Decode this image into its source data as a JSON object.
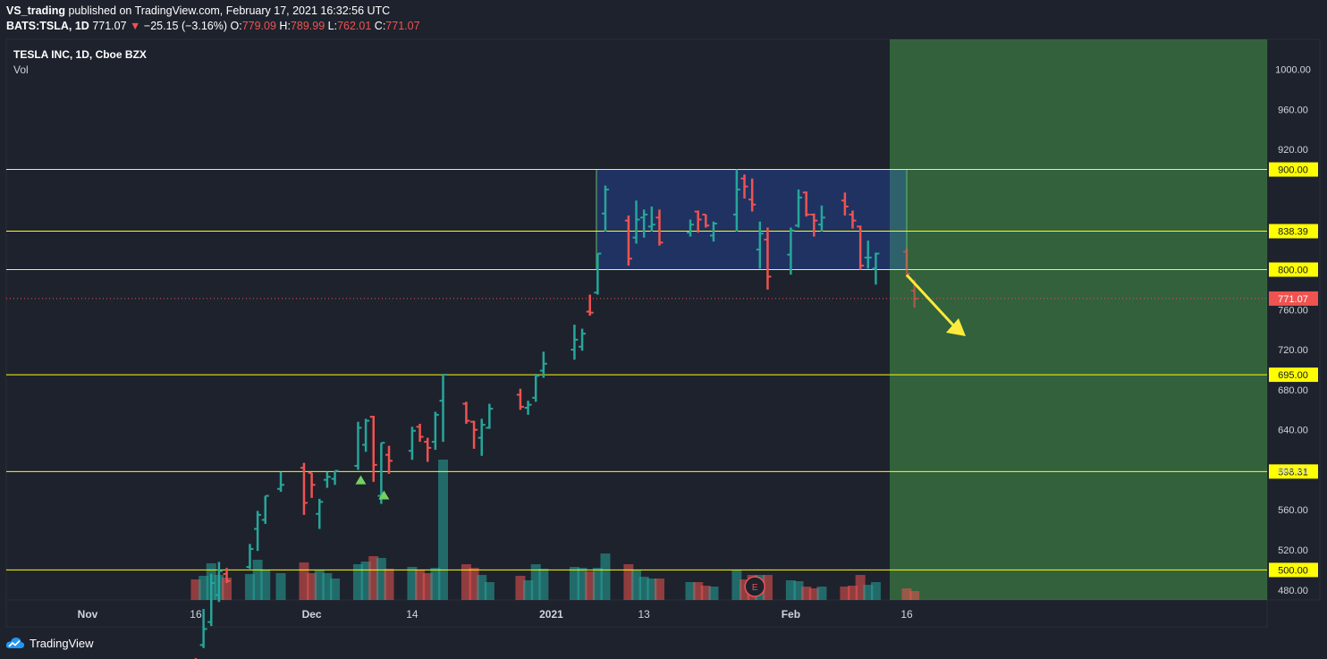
{
  "header": {
    "author": "VS_trading",
    "published_text": "published on TradingView.com, February 17, 2021 16:32:56 UTC",
    "symbol": "BATS:TSLA, 1D",
    "last": "771.07",
    "change": "−25.15 (−3.16%)",
    "o_label": "O:",
    "o_value": "779.09",
    "h_label": "H:",
    "h_value": "789.99",
    "l_label": "L:",
    "l_value": "762.01",
    "c_label": "C:",
    "c_value": "771.07"
  },
  "footer": {
    "brand": "TradingView"
  },
  "colors": {
    "bg": "#1e222d",
    "up": "#26a69a",
    "down": "#ef5350",
    "level_line": "#ffff00",
    "zone_fill": "#4caf50",
    "arrow": "#ffeb3b"
  },
  "chart_data": {
    "type": "ohlc",
    "title": "TESLA INC, 1D, Cboe BZX",
    "volume_label": "Vol",
    "price_range": [
      470,
      1030
    ],
    "y_ticks": [
      480,
      520,
      560,
      600,
      640,
      680,
      720,
      760,
      920,
      960,
      1000
    ],
    "x_ticks": [
      "Nov",
      "16",
      "Dec",
      "14",
      "2021",
      "13",
      "Feb",
      "16"
    ],
    "levels": [
      500.0,
      598.31,
      695.0,
      800.0,
      838.39,
      900.0
    ],
    "level_labels": [
      "500.00",
      "598.31",
      "695.00",
      "800.00",
      "838.39",
      "900.00"
    ],
    "last_price": 771.07,
    "last_price_label": "771.07",
    "consolidation_box": {
      "from_date": "2021-01-08",
      "to_date": "2021-02-16",
      "low": 800,
      "high": 900
    },
    "forecast_zone_from": "2021-02-16",
    "earnings_marker": "E",
    "signal_markers": [
      "buy",
      "buy"
    ],
    "bars": [
      {
        "d": "2020-11-16",
        "o": 409,
        "h": 412,
        "l": 402,
        "c": 408
      },
      {
        "d": "2020-11-17",
        "o": 425,
        "h": 461,
        "l": 422,
        "c": 441
      },
      {
        "d": "2020-11-18",
        "o": 448,
        "h": 496,
        "l": 444,
        "c": 487
      },
      {
        "d": "2020-11-19",
        "o": 475,
        "h": 508,
        "l": 468,
        "c": 499
      },
      {
        "d": "2020-11-20",
        "o": 496,
        "h": 502,
        "l": 487,
        "c": 489
      },
      {
        "d": "2020-11-23",
        "o": 503,
        "h": 526,
        "l": 501,
        "c": 521
      },
      {
        "d": "2020-11-24",
        "o": 541,
        "h": 559,
        "l": 519,
        "c": 555
      },
      {
        "d": "2020-11-25",
        "o": 550,
        "h": 574,
        "l": 546,
        "c": 574
      },
      {
        "d": "2020-11-27",
        "o": 581,
        "h": 598,
        "l": 578,
        "c": 585
      },
      {
        "d": "2020-11-30",
        "o": 602,
        "h": 607,
        "l": 555,
        "c": 567
      },
      {
        "d": "2020-12-01",
        "o": 597,
        "h": 597,
        "l": 572,
        "c": 585
      },
      {
        "d": "2020-12-02",
        "o": 556,
        "h": 571,
        "l": 541,
        "c": 568
      },
      {
        "d": "2020-12-03",
        "o": 590,
        "h": 598,
        "l": 582,
        "c": 593
      },
      {
        "d": "2020-12-04",
        "o": 591,
        "h": 599,
        "l": 585,
        "c": 599
      },
      {
        "d": "2020-12-07",
        "o": 604,
        "h": 648,
        "l": 600,
        "c": 642
      },
      {
        "d": "2020-12-08",
        "o": 625,
        "h": 651,
        "l": 618,
        "c": 649
      },
      {
        "d": "2020-12-09",
        "o": 653,
        "h": 654,
        "l": 588,
        "c": 605
      },
      {
        "d": "2020-12-10",
        "o": 574,
        "h": 627,
        "l": 566,
        "c": 627
      },
      {
        "d": "2020-12-11",
        "o": 615,
        "h": 624,
        "l": 596,
        "c": 609
      },
      {
        "d": "2020-12-14",
        "o": 619,
        "h": 643,
        "l": 610,
        "c": 639
      },
      {
        "d": "2020-12-15",
        "o": 643,
        "h": 646,
        "l": 628,
        "c": 633
      },
      {
        "d": "2020-12-16",
        "o": 628,
        "h": 632,
        "l": 608,
        "c": 622
      },
      {
        "d": "2020-12-17",
        "o": 628,
        "h": 658,
        "l": 620,
        "c": 655
      },
      {
        "d": "2020-12-18",
        "o": 669,
        "h": 695,
        "l": 628,
        "c": 695
      },
      {
        "d": "2020-12-21",
        "o": 666,
        "h": 668,
        "l": 646,
        "c": 649
      },
      {
        "d": "2020-12-22",
        "o": 648,
        "h": 649,
        "l": 621,
        "c": 640
      },
      {
        "d": "2020-12-23",
        "o": 632,
        "h": 651,
        "l": 614,
        "c": 645
      },
      {
        "d": "2020-12-24",
        "o": 642,
        "h": 666,
        "l": 641,
        "c": 661
      },
      {
        "d": "2020-12-28",
        "o": 675,
        "h": 681,
        "l": 660,
        "c": 663
      },
      {
        "d": "2020-12-29",
        "o": 662,
        "h": 669,
        "l": 655,
        "c": 665
      },
      {
        "d": "2020-12-30",
        "o": 672,
        "h": 696,
        "l": 668,
        "c": 694
      },
      {
        "d": "2020-12-31",
        "o": 699,
        "h": 718,
        "l": 692,
        "c": 706
      },
      {
        "d": "2021-01-04",
        "o": 720,
        "h": 745,
        "l": 710,
        "c": 730
      },
      {
        "d": "2021-01-05",
        "o": 723,
        "h": 741,
        "l": 719,
        "c": 736
      },
      {
        "d": "2021-01-06",
        "o": 758,
        "h": 775,
        "l": 754,
        "c": 757
      },
      {
        "d": "2021-01-07",
        "o": 777,
        "h": 816,
        "l": 775,
        "c": 816
      },
      {
        "d": "2021-01-08",
        "o": 856,
        "h": 884,
        "l": 838,
        "c": 880
      },
      {
        "d": "2021-01-11",
        "o": 849,
        "h": 854,
        "l": 804,
        "c": 811
      },
      {
        "d": "2021-01-12",
        "o": 832,
        "h": 869,
        "l": 826,
        "c": 850
      },
      {
        "d": "2021-01-13",
        "o": 852,
        "h": 860,
        "l": 832,
        "c": 855
      },
      {
        "d": "2021-01-14",
        "o": 843,
        "h": 863,
        "l": 838,
        "c": 845
      },
      {
        "d": "2021-01-15",
        "o": 852,
        "h": 860,
        "l": 824,
        "c": 827
      },
      {
        "d": "2021-01-19",
        "o": 837,
        "h": 850,
        "l": 833,
        "c": 845
      },
      {
        "d": "2021-01-20",
        "o": 858,
        "h": 859,
        "l": 837,
        "c": 850
      },
      {
        "d": "2021-01-21",
        "o": 855,
        "h": 855,
        "l": 842,
        "c": 844
      },
      {
        "d": "2021-01-22",
        "o": 834,
        "h": 848,
        "l": 828,
        "c": 846
      },
      {
        "d": "2021-01-25",
        "o": 855,
        "h": 900,
        "l": 838,
        "c": 880
      },
      {
        "d": "2021-01-26",
        "o": 891,
        "h": 895,
        "l": 871,
        "c": 883
      },
      {
        "d": "2021-01-27",
        "o": 870,
        "h": 891,
        "l": 858,
        "c": 865
      },
      {
        "d": "2021-01-28",
        "o": 820,
        "h": 848,
        "l": 801,
        "c": 836
      },
      {
        "d": "2021-01-29",
        "o": 830,
        "h": 842,
        "l": 780,
        "c": 793
      },
      {
        "d": "2021-02-01",
        "o": 815,
        "h": 842,
        "l": 795,
        "c": 839
      },
      {
        "d": "2021-02-02",
        "o": 844,
        "h": 880,
        "l": 842,
        "c": 872
      },
      {
        "d": "2021-02-03",
        "o": 877,
        "h": 878,
        "l": 853,
        "c": 855
      },
      {
        "d": "2021-02-04",
        "o": 855,
        "h": 856,
        "l": 833,
        "c": 849
      },
      {
        "d": "2021-02-05",
        "o": 845,
        "h": 864,
        "l": 838,
        "c": 852
      },
      {
        "d": "2021-02-08",
        "o": 869,
        "h": 877,
        "l": 854,
        "c": 863
      },
      {
        "d": "2021-02-09",
        "o": 855,
        "h": 859,
        "l": 841,
        "c": 849
      },
      {
        "d": "2021-02-10",
        "o": 843,
        "h": 844,
        "l": 800,
        "c": 804
      },
      {
        "d": "2021-02-11",
        "o": 812,
        "h": 829,
        "l": 801,
        "c": 812
      },
      {
        "d": "2021-02-12",
        "o": 801,
        "h": 817,
        "l": 785,
        "c": 816
      },
      {
        "d": "2021-02-16",
        "o": 818,
        "h": 821,
        "l": 792,
        "c": 796
      },
      {
        "d": "2021-02-17",
        "o": 779,
        "h": 790,
        "l": 762,
        "c": 771
      }
    ],
    "volume": [
      {
        "d": "2020-11-16",
        "v": 23
      },
      {
        "d": "2020-11-17",
        "v": 27
      },
      {
        "d": "2020-11-18",
        "v": 41
      },
      {
        "d": "2020-11-19",
        "v": 28
      },
      {
        "d": "2020-11-20",
        "v": 25
      },
      {
        "d": "2020-11-23",
        "v": 29
      },
      {
        "d": "2020-11-24",
        "v": 45
      },
      {
        "d": "2020-11-25",
        "v": 34
      },
      {
        "d": "2020-11-27",
        "v": 30
      },
      {
        "d": "2020-11-30",
        "v": 42
      },
      {
        "d": "2020-12-01",
        "v": 30
      },
      {
        "d": "2020-12-02",
        "v": 33
      },
      {
        "d": "2020-12-03",
        "v": 30
      },
      {
        "d": "2020-12-04",
        "v": 24
      },
      {
        "d": "2020-12-07",
        "v": 40
      },
      {
        "d": "2020-12-08",
        "v": 43
      },
      {
        "d": "2020-12-09",
        "v": 49
      },
      {
        "d": "2020-12-10",
        "v": 47
      },
      {
        "d": "2020-12-11",
        "v": 35
      },
      {
        "d": "2020-12-14",
        "v": 37
      },
      {
        "d": "2020-12-15",
        "v": 34
      },
      {
        "d": "2020-12-16",
        "v": 30
      },
      {
        "d": "2020-12-17",
        "v": 36
      },
      {
        "d": "2020-12-18",
        "v": 157
      },
      {
        "d": "2020-12-21",
        "v": 40
      },
      {
        "d": "2020-12-22",
        "v": 36
      },
      {
        "d": "2020-12-23",
        "v": 28
      },
      {
        "d": "2020-12-24",
        "v": 20
      },
      {
        "d": "2020-12-28",
        "v": 27
      },
      {
        "d": "2020-12-29",
        "v": 22
      },
      {
        "d": "2020-12-30",
        "v": 40
      },
      {
        "d": "2020-12-31",
        "v": 35
      },
      {
        "d": "2021-01-04",
        "v": 37
      },
      {
        "d": "2021-01-05",
        "v": 36
      },
      {
        "d": "2021-01-06",
        "v": 32
      },
      {
        "d": "2021-01-07",
        "v": 36
      },
      {
        "d": "2021-01-08",
        "v": 52
      },
      {
        "d": "2021-01-11",
        "v": 40
      },
      {
        "d": "2021-01-12",
        "v": 33
      },
      {
        "d": "2021-01-13",
        "v": 26
      },
      {
        "d": "2021-01-14",
        "v": 24
      },
      {
        "d": "2021-01-15",
        "v": 24
      },
      {
        "d": "2021-01-19",
        "v": 20
      },
      {
        "d": "2021-01-20",
        "v": 20
      },
      {
        "d": "2021-01-21",
        "v": 16
      },
      {
        "d": "2021-01-22",
        "v": 15
      },
      {
        "d": "2021-01-25",
        "v": 33
      },
      {
        "d": "2021-01-26",
        "v": 23
      },
      {
        "d": "2021-01-27",
        "v": 28
      },
      {
        "d": "2021-01-28",
        "v": 28
      },
      {
        "d": "2021-01-29",
        "v": 28
      },
      {
        "d": "2021-02-01",
        "v": 22
      },
      {
        "d": "2021-02-02",
        "v": 21
      },
      {
        "d": "2021-02-03",
        "v": 15
      },
      {
        "d": "2021-02-04",
        "v": 13
      },
      {
        "d": "2021-02-05",
        "v": 15
      },
      {
        "d": "2021-02-08",
        "v": 15
      },
      {
        "d": "2021-02-09",
        "v": 16
      },
      {
        "d": "2021-02-10",
        "v": 28
      },
      {
        "d": "2021-02-11",
        "v": 17
      },
      {
        "d": "2021-02-12",
        "v": 20
      },
      {
        "d": "2021-02-16",
        "v": 13
      },
      {
        "d": "2021-02-17",
        "v": 10
      }
    ]
  }
}
